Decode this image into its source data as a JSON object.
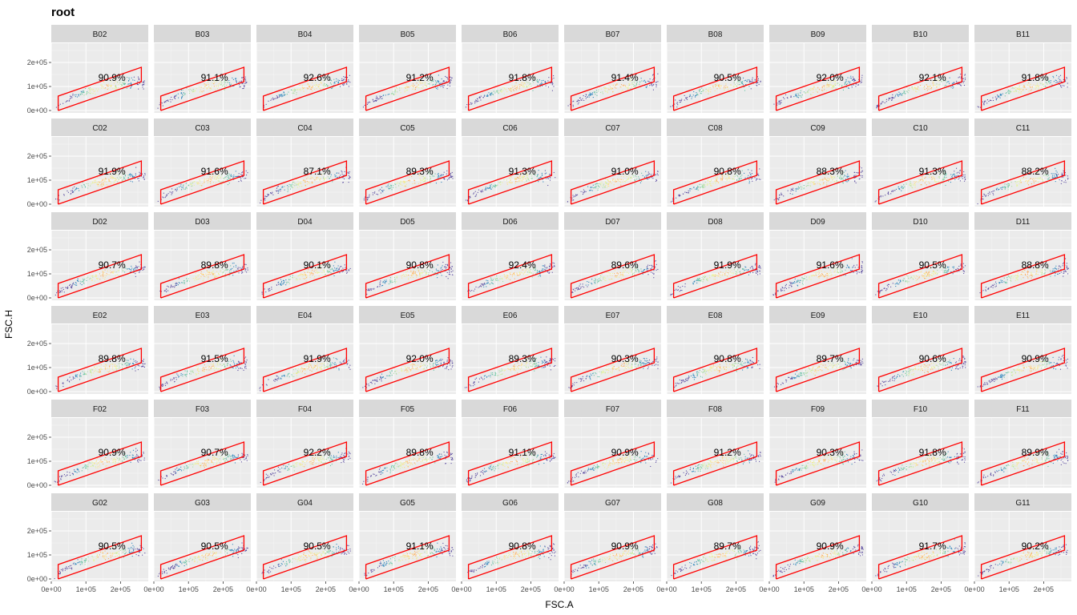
{
  "chart_data": {
    "type": "scatter",
    "title": "root",
    "xlabel": "FSC.A",
    "ylabel": "FSC.H",
    "xlim": [
      0,
      280000
    ],
    "ylim": [
      -10000,
      280000
    ],
    "x_ticks": [
      0,
      100000,
      200000
    ],
    "x_tick_labels": [
      "0e+00",
      "1e+05",
      "2e+05"
    ],
    "y_ticks": [
      0,
      100000,
      200000
    ],
    "y_tick_labels": [
      "0e+00",
      "1e+05",
      "2e+05"
    ],
    "grid": true,
    "facet_rows": [
      "B",
      "C",
      "D",
      "E",
      "F",
      "G"
    ],
    "facet_cols": [
      "02",
      "03",
      "04",
      "05",
      "06",
      "07",
      "08",
      "09",
      "10",
      "11"
    ],
    "gate_polygon": {
      "color": "#ff0000",
      "x": [
        20000,
        260000,
        260000,
        20000,
        20000
      ],
      "y": [
        0,
        120000,
        180000,
        60000,
        0
      ]
    },
    "panels": [
      {
        "name": "B02",
        "percent": "90.9%"
      },
      {
        "name": "B03",
        "percent": "91.1%"
      },
      {
        "name": "B04",
        "percent": "92.6%"
      },
      {
        "name": "B05",
        "percent": "91.2%"
      },
      {
        "name": "B06",
        "percent": "91.8%"
      },
      {
        "name": "B07",
        "percent": "91.4%"
      },
      {
        "name": "B08",
        "percent": "90.5%"
      },
      {
        "name": "B09",
        "percent": "92.0%"
      },
      {
        "name": "B10",
        "percent": "92.1%"
      },
      {
        "name": "B11",
        "percent": "91.8%"
      },
      {
        "name": "C02",
        "percent": "91.9%"
      },
      {
        "name": "C03",
        "percent": "91.6%"
      },
      {
        "name": "C04",
        "percent": "87.1%"
      },
      {
        "name": "C05",
        "percent": "89.3%"
      },
      {
        "name": "C06",
        "percent": "91.3%"
      },
      {
        "name": "C07",
        "percent": "91.0%"
      },
      {
        "name": "C08",
        "percent": "90.8%"
      },
      {
        "name": "C09",
        "percent": "88.3%"
      },
      {
        "name": "C10",
        "percent": "91.3%"
      },
      {
        "name": "C11",
        "percent": "88.2%"
      },
      {
        "name": "D02",
        "percent": "90.7%"
      },
      {
        "name": "D03",
        "percent": "89.8%"
      },
      {
        "name": "D04",
        "percent": "90.1%"
      },
      {
        "name": "D05",
        "percent": "90.8%"
      },
      {
        "name": "D06",
        "percent": "92.4%"
      },
      {
        "name": "D07",
        "percent": "89.6%"
      },
      {
        "name": "D08",
        "percent": "91.9%"
      },
      {
        "name": "D09",
        "percent": "91.6%"
      },
      {
        "name": "D10",
        "percent": "90.5%"
      },
      {
        "name": "D11",
        "percent": "88.8%"
      },
      {
        "name": "E02",
        "percent": "89.8%"
      },
      {
        "name": "E03",
        "percent": "91.5%"
      },
      {
        "name": "E04",
        "percent": "91.9%"
      },
      {
        "name": "E05",
        "percent": "92.0%"
      },
      {
        "name": "E06",
        "percent": "89.3%"
      },
      {
        "name": "E07",
        "percent": "90.3%"
      },
      {
        "name": "E08",
        "percent": "90.8%"
      },
      {
        "name": "E09",
        "percent": "89.7%"
      },
      {
        "name": "E10",
        "percent": "90.6%"
      },
      {
        "name": "E11",
        "percent": "90.9%"
      },
      {
        "name": "F02",
        "percent": "90.9%"
      },
      {
        "name": "F03",
        "percent": "90.7%"
      },
      {
        "name": "F04",
        "percent": "92.2%"
      },
      {
        "name": "F05",
        "percent": "89.8%"
      },
      {
        "name": "F06",
        "percent": "91.1%"
      },
      {
        "name": "F07",
        "percent": "90.9%"
      },
      {
        "name": "F08",
        "percent": "91.2%"
      },
      {
        "name": "F09",
        "percent": "90.3%"
      },
      {
        "name": "F10",
        "percent": "91.8%"
      },
      {
        "name": "F11",
        "percent": "89.9%"
      },
      {
        "name": "G02",
        "percent": "90.5%"
      },
      {
        "name": "G03",
        "percent": "90.5%"
      },
      {
        "name": "G04",
        "percent": "90.5%"
      },
      {
        "name": "G05",
        "percent": "91.1%"
      },
      {
        "name": "G06",
        "percent": "90.8%"
      },
      {
        "name": "G07",
        "percent": "90.9%"
      },
      {
        "name": "G08",
        "percent": "89.7%"
      },
      {
        "name": "G09",
        "percent": "90.9%"
      },
      {
        "name": "G10",
        "percent": "91.7%"
      },
      {
        "name": "G11",
        "percent": "90.2%"
      }
    ],
    "point_colors": [
      "#5e4fa2",
      "#3288bd",
      "#66c2a5",
      "#abdda4",
      "#e6f598",
      "#fee08b",
      "#fdae61"
    ],
    "panel_background": "#ebebeb",
    "strip_background": "#d9d9d9"
  }
}
